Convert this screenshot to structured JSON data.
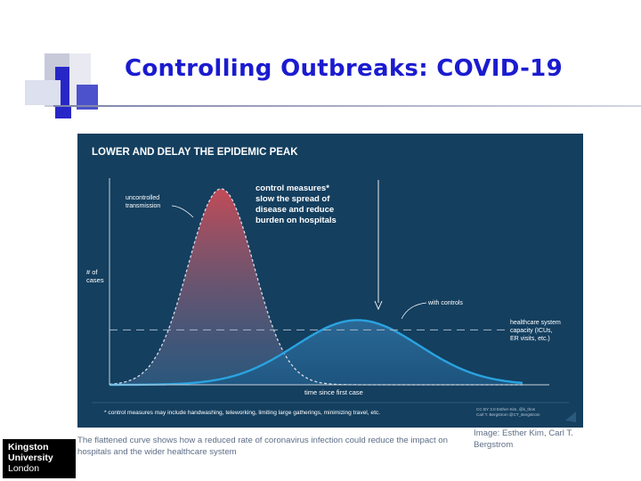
{
  "slide": {
    "title": "Controlling Outbreaks: COVID-19",
    "caption": "The flattened curve shows how a reduced rate of coronavirus infection could reduce the impact on hospitals and the wider healthcare system",
    "image_credit": "Image: Esther Kim, Carl T. Bergstrom",
    "logo": {
      "line1": "Kingston",
      "line2": "University",
      "line3": "London"
    }
  },
  "colors": {
    "title": "#1b1bd0",
    "chart_bg": "#143f5f",
    "uncontrolled_curve": "#c24b57",
    "controlled_curve": "#2aa3e0",
    "text": "#ffffff"
  },
  "chart_data": {
    "type": "area",
    "title": "LOWER AND DELAY THE EPIDEMIC PEAK",
    "xlabel": "time since first case",
    "ylabel": "# of\ncases",
    "xlim": [
      0,
      100
    ],
    "ylim": [
      0,
      100
    ],
    "grid": false,
    "series": [
      {
        "name": "uncontrolled transmission",
        "type": "gaussian",
        "peak_x": 27,
        "peak_y": 100,
        "sigma": 8
      },
      {
        "name": "with controls",
        "type": "gaussian",
        "peak_x": 60,
        "peak_y": 33,
        "sigma": 15
      }
    ],
    "threshold": {
      "label": "healthcare system\ncapacity (ICUs,\nER visits, etc.)",
      "value": 28
    },
    "annotations": [
      {
        "text": "uncontrolled\ntransmission"
      },
      {
        "text": "control measures*\nslow the spread of\ndisease and reduce\nburden on hospitals"
      },
      {
        "text": "with controls"
      }
    ],
    "footnote": "* control measures may include handwashing, teleworking, limiting large gatherings, minimizing travel, etc.",
    "license": "CC BY 3.0  Esther Kim, @k_thos\nCarl T. Bergstrom @CT_Bergstrom"
  }
}
